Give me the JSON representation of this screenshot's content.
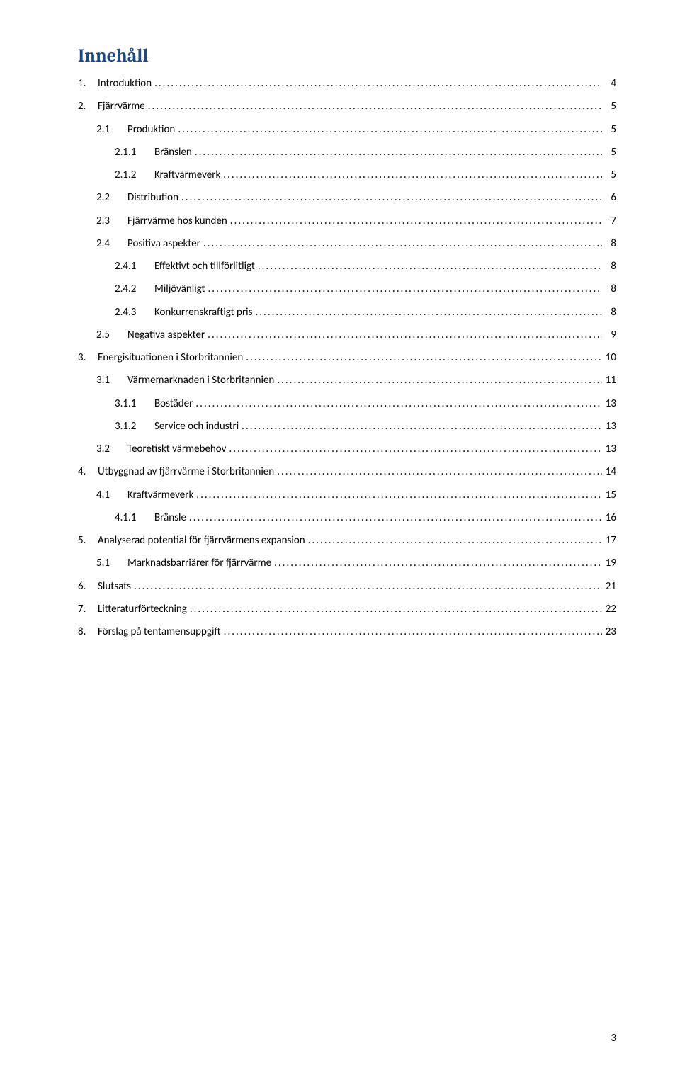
{
  "heading": "Innehåll",
  "page_number": "3",
  "colors": {
    "heading": "#1f497d",
    "text": "#000000",
    "background": "#ffffff"
  },
  "typography": {
    "heading_font": "Cambria",
    "heading_size_pt": 20,
    "body_font": "Calibri",
    "body_size_pt": 11
  },
  "toc": [
    {
      "level": 1,
      "num": "1.",
      "label": "Introduktion",
      "page": "4"
    },
    {
      "level": 1,
      "num": "2.",
      "label": "Fjärrvärme",
      "page": "5"
    },
    {
      "level": 2,
      "num": "2.1",
      "label": "Produktion",
      "page": "5"
    },
    {
      "level": 3,
      "num": "2.1.1",
      "label": "Bränslen",
      "page": "5"
    },
    {
      "level": 3,
      "num": "2.1.2",
      "label": "Kraftvärmeverk",
      "page": "5"
    },
    {
      "level": 2,
      "num": "2.2",
      "label": "Distribution",
      "page": "6"
    },
    {
      "level": 2,
      "num": "2.3",
      "label": "Fjärrvärme hos kunden",
      "page": "7"
    },
    {
      "level": 2,
      "num": "2.4",
      "label": "Positiva aspekter",
      "page": "8"
    },
    {
      "level": 3,
      "num": "2.4.1",
      "label": "Effektivt och tillförlitligt",
      "page": "8"
    },
    {
      "level": 3,
      "num": "2.4.2",
      "label": "Miljövänligt",
      "page": "8"
    },
    {
      "level": 3,
      "num": "2.4.3",
      "label": "Konkurrenskraftigt pris",
      "page": "8"
    },
    {
      "level": 2,
      "num": "2.5",
      "label": "Negativa aspekter",
      "page": "9"
    },
    {
      "level": 1,
      "num": "3.",
      "label": "Energisituationen i Storbritannien",
      "page": "10"
    },
    {
      "level": 2,
      "num": "3.1",
      "label": "Värmemarknaden i Storbritannien",
      "page": "11"
    },
    {
      "level": 3,
      "num": "3.1.1",
      "label": "Bostäder",
      "page": "13"
    },
    {
      "level": 3,
      "num": "3.1.2",
      "label": "Service och industri",
      "page": "13"
    },
    {
      "level": 2,
      "num": "3.2",
      "label": "Teoretiskt värmebehov",
      "page": "13"
    },
    {
      "level": 1,
      "num": "4.",
      "label": "Utbyggnad av fjärrvärme i Storbritannien",
      "page": "14"
    },
    {
      "level": 2,
      "num": "4.1",
      "label": "Kraftvärmeverk",
      "page": "15"
    },
    {
      "level": 3,
      "num": "4.1.1",
      "label": "Bränsle",
      "page": "16"
    },
    {
      "level": 1,
      "num": "5.",
      "label": "Analyserad potential för fjärrvärmens expansion",
      "page": "17"
    },
    {
      "level": 2,
      "num": "5.1",
      "label": "Marknadsbarriärer för fjärrvärme",
      "page": "19"
    },
    {
      "level": 1,
      "num": "6.",
      "label": "Slutsats",
      "page": "21"
    },
    {
      "level": 1,
      "num": "7.",
      "label": "Litteraturförteckning",
      "page": "22"
    },
    {
      "level": 1,
      "num": "8.",
      "label": "Förslag på tentamensuppgift",
      "page": "23"
    }
  ]
}
